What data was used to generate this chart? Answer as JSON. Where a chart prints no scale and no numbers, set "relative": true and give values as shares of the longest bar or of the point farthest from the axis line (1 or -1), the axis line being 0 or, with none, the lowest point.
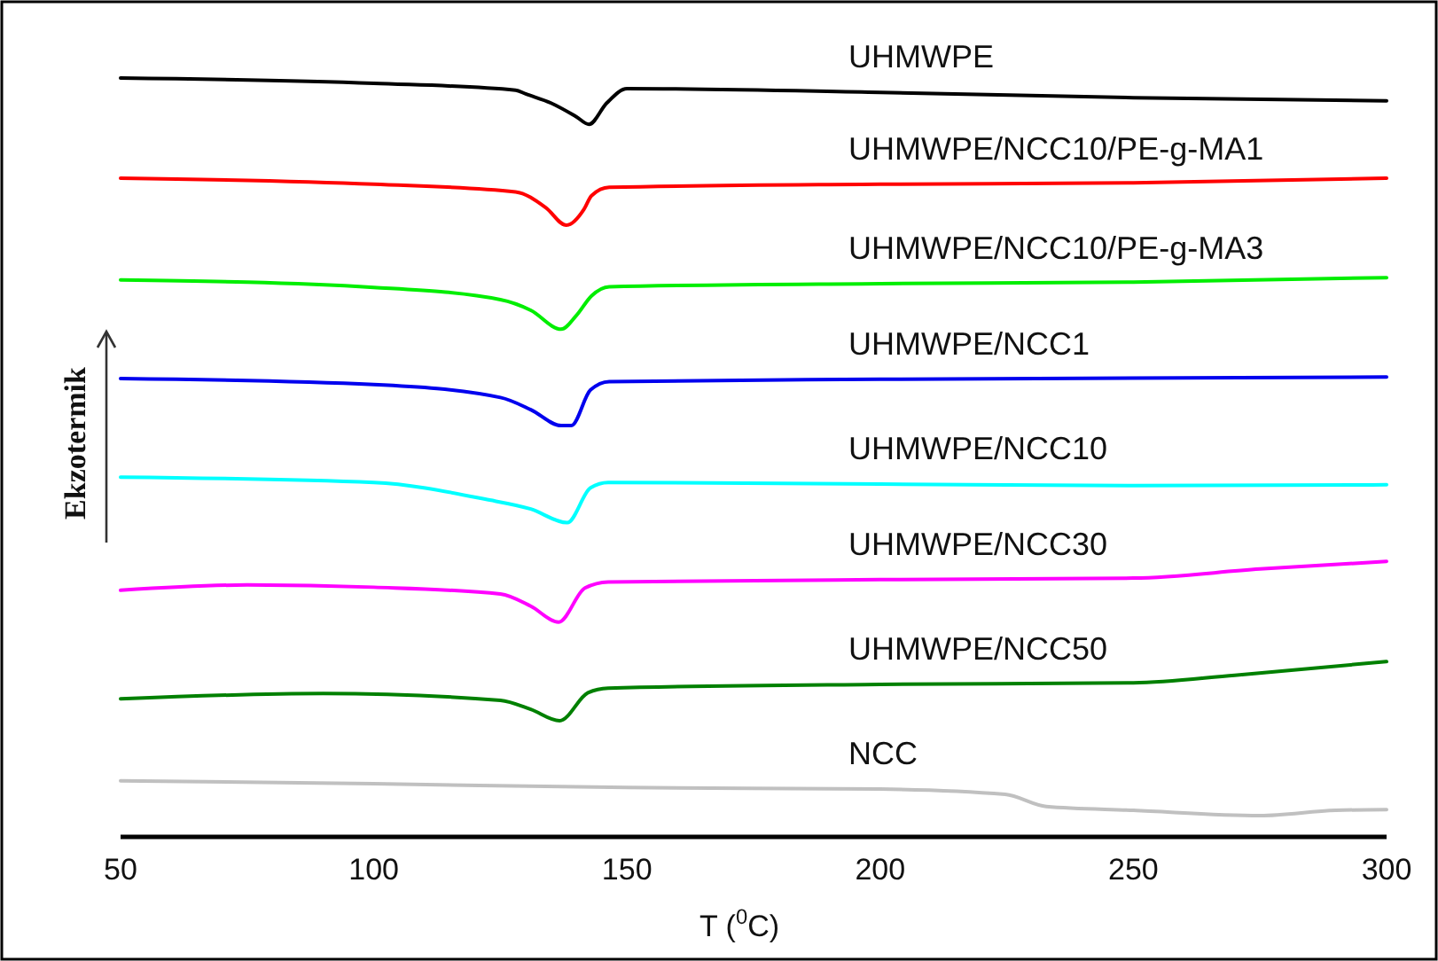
{
  "chart_data": {
    "type": "line",
    "relative": true,
    "xlabel": "T ($^{0}$C)",
    "ylabel": "Ekzotermik",
    "xlim": [
      50,
      300
    ],
    "xticks": [
      50,
      100,
      150,
      200,
      250,
      300
    ],
    "legend": false,
    "grid": false,
    "marker": "none",
    "line_style": "solid",
    "series": [
      {
        "name": "UHMWPE",
        "color": "#000000",
        "x": [
          50,
          100,
          128,
          130,
          135,
          140,
          142.5,
          146,
          150,
          200,
          250,
          300
        ],
        "values": [
          1.0,
          0.993,
          0.984,
          0.979,
          0.967,
          0.949,
          0.939,
          0.967,
          0.986,
          0.981,
          0.974,
          0.97
        ]
      },
      {
        "name": "UHMWPE/NCC10/PE-g-MA1",
        "color": "#ff0000",
        "x": [
          50,
          100,
          128,
          134,
          138,
          141.5,
          143,
          146.5,
          200,
          250,
          300
        ],
        "values": [
          0.868,
          0.86,
          0.85,
          0.829,
          0.806,
          0.827,
          0.845,
          0.856,
          0.86,
          0.862,
          0.868
        ]
      },
      {
        "name": "UHMWPE/NCC10/PE-g-MA3",
        "color": "#00ee00",
        "x": [
          50,
          100,
          125,
          131,
          137,
          140,
          143,
          146.5,
          200,
          250,
          300
        ],
        "values": [
          0.734,
          0.724,
          0.708,
          0.694,
          0.669,
          0.687,
          0.713,
          0.725,
          0.729,
          0.731,
          0.737
        ]
      },
      {
        "name": "UHMWPE/NCC1",
        "color": "#0000ee",
        "x": [
          50,
          100,
          125,
          131,
          137,
          139,
          142.8,
          146.5,
          200,
          300
        ],
        "values": [
          0.604,
          0.596,
          0.579,
          0.563,
          0.542,
          0.542,
          0.589,
          0.6,
          0.603,
          0.606
        ]
      },
      {
        "name": "UHMWPE/NCC10",
        "color": "#00ffff",
        "x": [
          50,
          100,
          122,
          131,
          138.2,
          142.8,
          146.3,
          200,
          250,
          300
        ],
        "values": [
          0.474,
          0.467,
          0.445,
          0.432,
          0.414,
          0.46,
          0.467,
          0.465,
          0.463,
          0.464
        ]
      },
      {
        "name": "UHMWPE/NCC30",
        "color": "#ff00ff",
        "x": [
          50,
          75,
          100,
          125,
          131,
          136.5,
          141.7,
          146.3,
          200,
          250,
          275,
          300
        ],
        "values": [
          0.325,
          0.332,
          0.329,
          0.32,
          0.304,
          0.283,
          0.328,
          0.336,
          0.339,
          0.341,
          0.353,
          0.363
        ]
      },
      {
        "name": "UHMWPE/NCC50",
        "color": "#008000",
        "x": [
          50,
          90,
          125,
          131,
          136.7,
          142.3,
          146.3,
          200,
          250,
          270,
          300
        ],
        "values": [
          0.182,
          0.189,
          0.18,
          0.168,
          0.153,
          0.19,
          0.196,
          0.201,
          0.203,
          0.213,
          0.231
        ]
      },
      {
        "name": "NCC",
        "color": "#c0c0c0",
        "x": [
          50,
          100,
          150,
          200,
          224.7,
          232.8,
          250,
          275,
          290,
          300
        ],
        "values": [
          0.074,
          0.07,
          0.065,
          0.063,
          0.056,
          0.04,
          0.035,
          0.028,
          0.035,
          0.036
        ]
      }
    ]
  }
}
